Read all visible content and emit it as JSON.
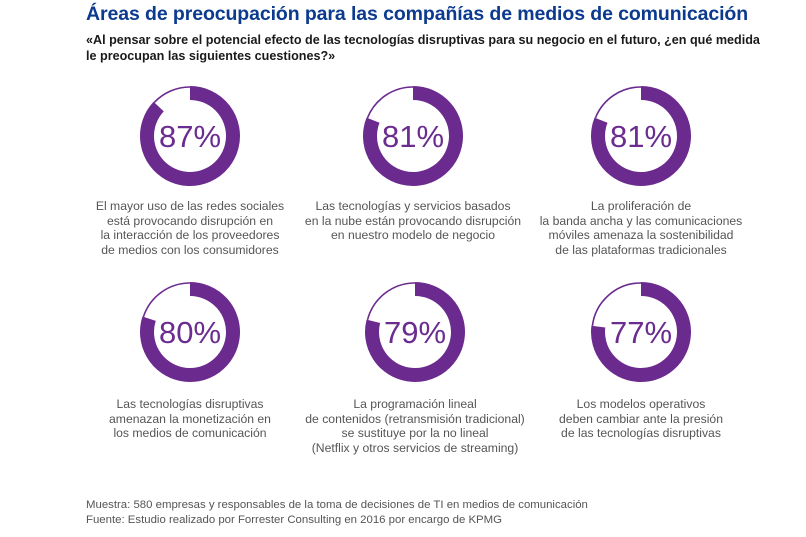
{
  "header": {
    "title": "Áreas de preocupación para las compañías de medios de comunicación",
    "subtitle_lines": [
      "«Al pensar sobre el potencial efecto de las tecnologías disruptivas para su negocio en el futuro, ¿en qué medida",
      "le preocupan las siguientes cuestiones?»"
    ]
  },
  "colors": {
    "title": "#0b3a8e",
    "donut": "#6b2a8e",
    "percent_text": "#6b2c8f",
    "caption_text": "#555555"
  },
  "chart_data": {
    "type": "pie",
    "subtype": "donut-grid",
    "title": "Áreas de preocupación para las compañías de medios de comunicación",
    "unit": "%",
    "items": [
      {
        "value": 87,
        "label": "87%",
        "caption": [
          "El mayor uso de las redes sociales",
          "está provocando disrupción en",
          "la interacción de los proveedores",
          "de medios con los consumidores"
        ]
      },
      {
        "value": 81,
        "label": "81%",
        "caption": [
          "Las tecnologías y servicios basados",
          "en la nube están provocando disrupción",
          "en nuestro modelo de negocio"
        ]
      },
      {
        "value": 81,
        "label": "81%",
        "caption": [
          "La proliferación de",
          "la banda ancha y las comunicaciones",
          "móviles amenaza la sostenibilidad",
          "de las plataformas tradicionales"
        ]
      },
      {
        "value": 80,
        "label": "80%",
        "caption": [
          "Las tecnologías disruptivas",
          "amenazan la monetización en",
          "los medios de comunicación"
        ]
      },
      {
        "value": 79,
        "label": "79%",
        "caption": [
          "La programación lineal",
          "de contenidos (retransmisión tradicional)",
          "se sustituye por la no lineal",
          "(Netflix y otros servicios de streaming)"
        ]
      },
      {
        "value": 77,
        "label": "77%",
        "caption": [
          "Los modelos operativos",
          "deben cambiar ante la presión",
          "de las tecnologías disruptivas"
        ]
      }
    ]
  },
  "footer": {
    "lines": [
      "Muestra: 580 empresas y responsables de la toma de decisiones de TI en medios de comunicación",
      "Fuente: Estudio realizado por Forrester Consulting en 2016 por encargo de KPMG"
    ]
  }
}
